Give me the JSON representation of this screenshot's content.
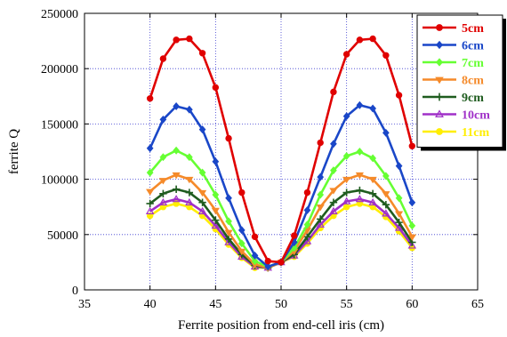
{
  "chart_data": {
    "type": "line",
    "title": "",
    "xlabel": "Ferrite position from end-cell iris (cm)",
    "ylabel": "ferrite Q",
    "xlim": [
      35,
      65
    ],
    "ylim": [
      0,
      250000
    ],
    "x_ticks": [
      "35",
      "40",
      "45",
      "50",
      "55",
      "60",
      "65"
    ],
    "y_ticks": [
      "0",
      "50000",
      "100000",
      "150000",
      "200000",
      "250000"
    ],
    "grid": true,
    "legend_position": "top-right",
    "x": [
      40,
      41,
      42,
      43,
      44,
      45,
      46,
      47,
      48,
      49,
      50,
      51,
      52,
      53,
      54,
      55,
      56,
      57,
      58,
      59,
      60
    ],
    "series": [
      {
        "name": "5cm",
        "color": "#e00000",
        "marker": "circle",
        "values": [
          173000,
          209000,
          226000,
          227000,
          214000,
          183000,
          137000,
          88000,
          48000,
          26000,
          25000,
          49000,
          88000,
          133000,
          179000,
          213000,
          226000,
          227000,
          212000,
          176000,
          130000
        ]
      },
      {
        "name": "6cm",
        "color": "#1a47c8",
        "marker": "diamond",
        "values": [
          128000,
          154000,
          166000,
          163000,
          145000,
          116000,
          83000,
          54000,
          31000,
          21000,
          25000,
          43000,
          72000,
          102000,
          132000,
          157000,
          167000,
          164000,
          142000,
          112000,
          79000
        ]
      },
      {
        "name": "7cm",
        "color": "#66ff33",
        "marker": "diamond",
        "values": [
          106000,
          120000,
          126000,
          120000,
          106000,
          86000,
          62000,
          42000,
          26000,
          21000,
          25000,
          38000,
          59000,
          86000,
          108000,
          121000,
          125000,
          119000,
          103000,
          83000,
          58000
        ]
      },
      {
        "name": "8cm",
        "color": "#f58a2a",
        "marker": "triangle-down",
        "values": [
          89000,
          99000,
          104000,
          100000,
          88000,
          72000,
          52000,
          35000,
          23000,
          20000,
          25000,
          35000,
          54000,
          75000,
          90000,
          100000,
          104000,
          100000,
          87000,
          69000,
          48000
        ]
      },
      {
        "name": "9cm",
        "color": "#1f5c1f",
        "marker": "plus",
        "values": [
          78000,
          87000,
          91000,
          88000,
          79000,
          63000,
          46000,
          32000,
          22000,
          20000,
          25000,
          32000,
          48000,
          64000,
          79000,
          88000,
          90000,
          87000,
          77000,
          61000,
          43000
        ]
      },
      {
        "name": "10cm",
        "color": "#a030c8",
        "marker": "triangle-up",
        "values": [
          71000,
          79000,
          82000,
          79000,
          71000,
          58000,
          43000,
          30000,
          21000,
          20000,
          25000,
          31000,
          44000,
          59000,
          71000,
          80000,
          82000,
          79000,
          69000,
          56000,
          40000
        ]
      },
      {
        "name": "11cm",
        "color": "#ffee00",
        "marker": "circle",
        "values": [
          67000,
          75000,
          78000,
          75000,
          67000,
          55000,
          41000,
          29000,
          20000,
          20000,
          25000,
          30000,
          42000,
          56000,
          67000,
          75000,
          78000,
          75000,
          66000,
          53000,
          38000
        ]
      }
    ]
  }
}
